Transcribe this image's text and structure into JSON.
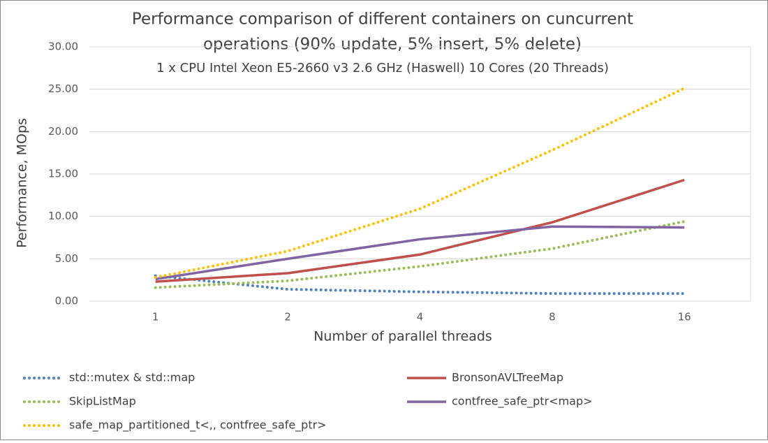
{
  "chart_data": {
    "type": "line",
    "title": [
      "Performance comparison of different containers on cuncurrent",
      "operations (90% update, 5% insert, 5% delete)"
    ],
    "subtitle": "1 x CPU Intel Xeon E5-2660 v3 2.6 GHz (Haswell) 10 Cores (20 Threads)",
    "x_label": "Number of parallel threads",
    "y_label": "Performance, MOps",
    "categories": [
      "1",
      "2",
      "4",
      "8",
      "16"
    ],
    "ylim": [
      0,
      30
    ],
    "yticks": [
      {
        "value": 0,
        "label": "0.00"
      },
      {
        "value": 5,
        "label": "5.00"
      },
      {
        "value": 10,
        "label": "10.00"
      },
      {
        "value": 15,
        "label": "15.00"
      },
      {
        "value": 20,
        "label": "20.00"
      },
      {
        "value": 25,
        "label": "25.00"
      },
      {
        "value": 30,
        "label": "30.00"
      }
    ],
    "grid": true,
    "legend": "bottom",
    "series": [
      {
        "name": "std::mutex & std::map",
        "color": "#4f81bd",
        "style": "dotted",
        "values": [
          3.0,
          1.4,
          1.1,
          0.9,
          0.9
        ]
      },
      {
        "name": "BronsonAVLTreeMap",
        "color": "#c0504d",
        "style": "solid",
        "values": [
          2.3,
          3.3,
          5.5,
          9.3,
          14.3
        ]
      },
      {
        "name": "SkipListMap",
        "color": "#9bbb59",
        "style": "dotted",
        "values": [
          1.6,
          2.4,
          4.1,
          6.2,
          9.4
        ]
      },
      {
        "name": "contfree_safe_ptr<map>",
        "color": "#8064a2",
        "style": "solid",
        "values": [
          2.6,
          5.0,
          7.3,
          8.8,
          8.7
        ]
      },
      {
        "name": "safe_map_partitioned_t<,, contfree_safe_ptr>",
        "color": "#ffc000",
        "style": "dotted",
        "values": [
          2.8,
          5.9,
          10.9,
          17.8,
          25.1
        ]
      }
    ]
  }
}
